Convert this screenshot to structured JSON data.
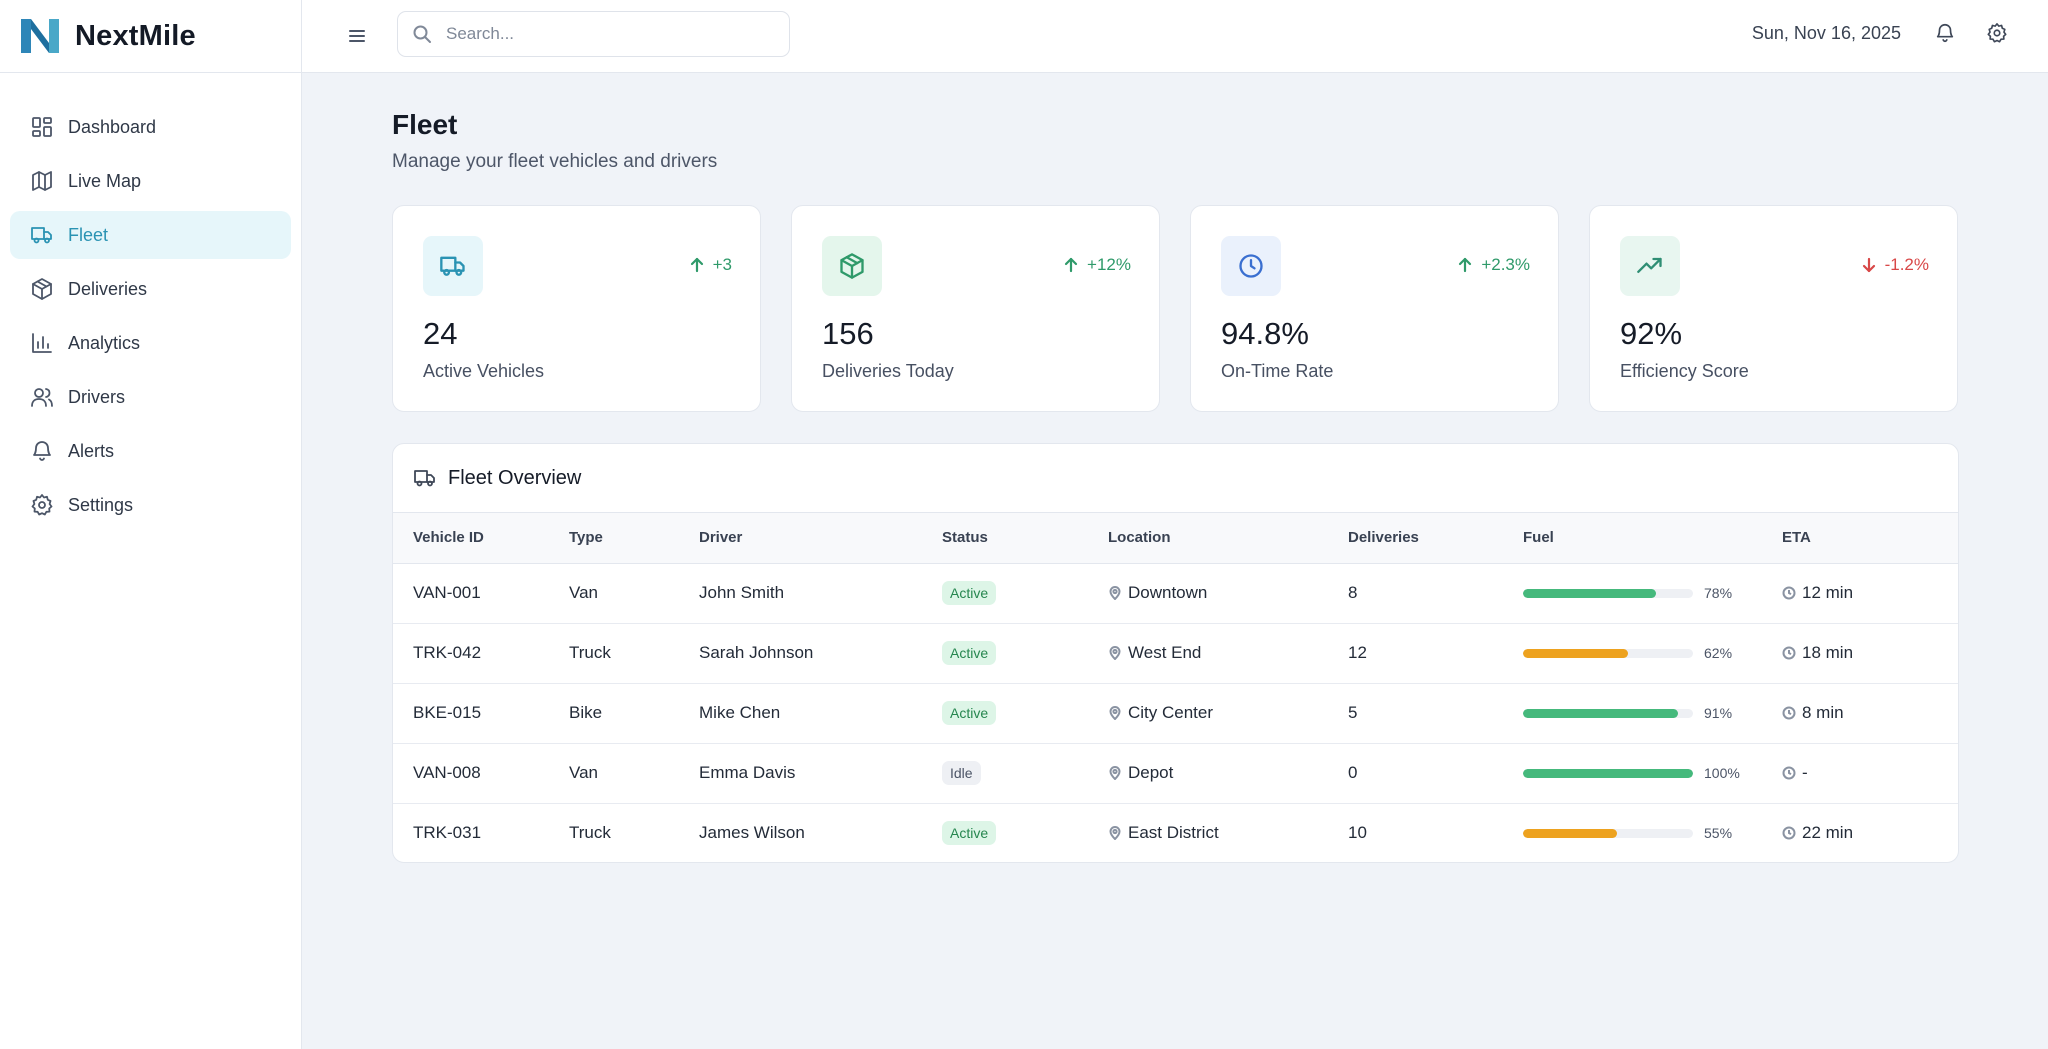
{
  "app": {
    "name": "NextMile"
  },
  "topbar": {
    "search_placeholder": "Search...",
    "date": "Sun, Nov 16, 2025"
  },
  "sidebar": {
    "items": [
      {
        "label": "Dashboard",
        "icon": "dashboard-icon"
      },
      {
        "label": "Live Map",
        "icon": "map-icon"
      },
      {
        "label": "Fleet",
        "icon": "truck-icon",
        "active": true
      },
      {
        "label": "Deliveries",
        "icon": "package-icon"
      },
      {
        "label": "Analytics",
        "icon": "bar-chart-icon"
      },
      {
        "label": "Drivers",
        "icon": "users-icon"
      },
      {
        "label": "Alerts",
        "icon": "bell-icon"
      },
      {
        "label": "Settings",
        "icon": "gear-icon"
      }
    ]
  },
  "page": {
    "title": "Fleet",
    "subtitle": "Manage your fleet vehicles and drivers"
  },
  "stats": [
    {
      "value": "24",
      "label": "Active Vehicles",
      "change": "+3",
      "trend": "up",
      "icon": "truck-icon",
      "icon_bg": "#e6f6fa",
      "icon_color": "#2a93b3"
    },
    {
      "value": "156",
      "label": "Deliveries Today",
      "change": "+12%",
      "trend": "up",
      "icon": "package-icon",
      "icon_bg": "#e4f6ec",
      "icon_color": "#2f9a6a"
    },
    {
      "value": "94.8%",
      "label": "On-Time Rate",
      "change": "+2.3%",
      "trend": "up",
      "icon": "clock-icon",
      "icon_bg": "#eaf1fc",
      "icon_color": "#3a6fd0"
    },
    {
      "value": "92%",
      "label": "Efficiency Score",
      "change": "-1.2%",
      "trend": "down",
      "icon": "trending-up-icon",
      "icon_bg": "#e8f6f0",
      "icon_color": "#2f8e74"
    }
  ],
  "table": {
    "title": "Fleet Overview",
    "columns": [
      "Vehicle ID",
      "Type",
      "Driver",
      "Status",
      "Location",
      "Deliveries",
      "Fuel",
      "ETA"
    ],
    "rows": [
      {
        "id": "VAN-001",
        "type": "Van",
        "driver": "John Smith",
        "status": "Active",
        "location": "Downtown",
        "deliveries": "8",
        "fuel": 78,
        "fuel_label": "78%",
        "eta": "12 min"
      },
      {
        "id": "TRK-042",
        "type": "Truck",
        "driver": "Sarah Johnson",
        "status": "Active",
        "location": "West End",
        "deliveries": "12",
        "fuel": 62,
        "fuel_label": "62%",
        "eta": "18 min"
      },
      {
        "id": "BKE-015",
        "type": "Bike",
        "driver": "Mike Chen",
        "status": "Active",
        "location": "City Center",
        "deliveries": "5",
        "fuel": 91,
        "fuel_label": "91%",
        "eta": "8 min"
      },
      {
        "id": "VAN-008",
        "type": "Van",
        "driver": "Emma Davis",
        "status": "Idle",
        "location": "Depot",
        "deliveries": "0",
        "fuel": 100,
        "fuel_label": "100%",
        "eta": "-"
      },
      {
        "id": "TRK-031",
        "type": "Truck",
        "driver": "James Wilson",
        "status": "Active",
        "location": "East District",
        "deliveries": "10",
        "fuel": 55,
        "fuel_label": "55%",
        "eta": "22 min"
      }
    ]
  },
  "colors": {
    "fuel_high": "#45b97c",
    "fuel_mid": "#eda21f",
    "accent": "#2a93b3"
  }
}
